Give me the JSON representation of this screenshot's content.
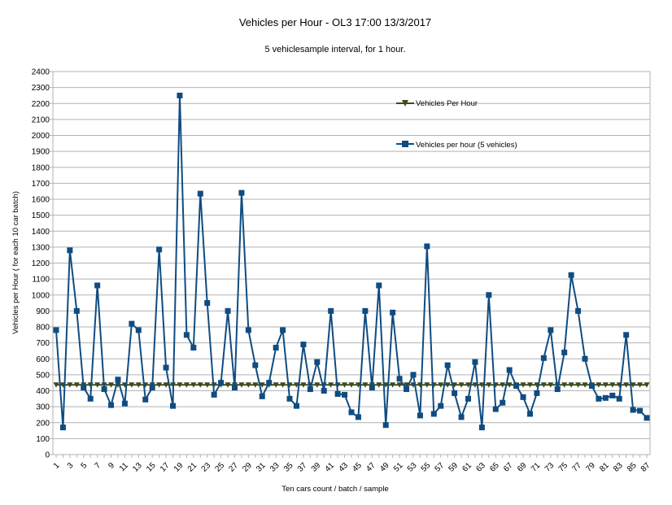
{
  "chart_data": {
    "type": "line",
    "title": "Vehicles per Hour - OL3   17:00 13/3/2017",
    "subtitle": "5 vehiclesample  interval, for 1 hour.",
    "xlabel": "Ten cars count / batch / sample",
    "ylabel": "Vehicles per Hour ( for each 10 car batch)",
    "ylim": [
      0,
      2400
    ],
    "yticks": [
      0,
      100,
      200,
      300,
      400,
      500,
      600,
      700,
      800,
      900,
      1000,
      1100,
      1200,
      1300,
      1400,
      1500,
      1600,
      1700,
      1800,
      1900,
      2000,
      2100,
      2200,
      2300,
      2400
    ],
    "x": [
      1,
      2,
      3,
      4,
      5,
      6,
      7,
      8,
      9,
      10,
      11,
      12,
      13,
      14,
      15,
      16,
      17,
      18,
      19,
      20,
      21,
      22,
      23,
      24,
      25,
      26,
      27,
      28,
      29,
      30,
      31,
      32,
      33,
      34,
      35,
      36,
      37,
      38,
      39,
      40,
      41,
      42,
      43,
      44,
      45,
      46,
      47,
      48,
      49,
      50,
      51,
      52,
      53,
      54,
      55,
      56,
      57,
      58,
      59,
      60,
      61,
      62,
      63,
      64,
      65,
      66,
      67,
      68,
      69,
      70,
      71,
      72,
      73,
      74,
      75,
      76,
      77,
      78,
      79,
      80,
      81,
      82,
      83,
      84,
      85,
      86,
      87
    ],
    "xtick_labels": [
      "1",
      "3",
      "5",
      "7",
      "9",
      "11",
      "13",
      "15",
      "17",
      "19",
      "21",
      "23",
      "25",
      "27",
      "29",
      "31",
      "33",
      "35",
      "37",
      "39",
      "41",
      "43",
      "45",
      "47",
      "49",
      "51",
      "53",
      "55",
      "57",
      "59",
      "61",
      "63",
      "65",
      "67",
      "69",
      "71",
      "73",
      "75",
      "77",
      "79",
      "81",
      "83",
      "85",
      "87"
    ],
    "grid": true,
    "legend_position": "top-right",
    "series": [
      {
        "name": "Vehicles Per Hour",
        "color": "#3c4a1e",
        "marker": "triangle-down",
        "values": [
          437,
          437,
          437,
          437,
          437,
          437,
          437,
          437,
          437,
          437,
          437,
          437,
          437,
          437,
          437,
          437,
          437,
          437,
          437,
          437,
          437,
          437,
          437,
          437,
          437,
          437,
          437,
          437,
          437,
          437,
          437,
          437,
          437,
          437,
          437,
          437,
          437,
          437,
          437,
          437,
          437,
          437,
          437,
          437,
          437,
          437,
          437,
          437,
          437,
          437,
          437,
          437,
          437,
          437,
          437,
          437,
          437,
          437,
          437,
          437,
          437,
          437,
          437,
          437,
          437,
          437,
          437,
          437,
          437,
          437,
          437,
          437,
          437,
          437,
          437,
          437,
          437,
          437,
          437,
          437,
          437,
          437,
          437,
          437,
          437,
          437,
          437
        ]
      },
      {
        "name": "Vehicles per hour (5 vehicles)",
        "color": "#0f4c81",
        "marker": "square",
        "values": [
          780,
          170,
          1280,
          900,
          420,
          350,
          1060,
          410,
          310,
          470,
          320,
          820,
          780,
          345,
          420,
          1285,
          545,
          305,
          2250,
          750,
          670,
          1635,
          950,
          375,
          450,
          900,
          420,
          1640,
          780,
          560,
          365,
          450,
          670,
          780,
          350,
          305,
          690,
          410,
          580,
          400,
          900,
          380,
          375,
          265,
          235,
          900,
          420,
          1060,
          185,
          890,
          475,
          410,
          500,
          245,
          1305,
          255,
          305,
          560,
          385,
          235,
          350,
          580,
          170,
          1000,
          285,
          325,
          530,
          430,
          360,
          255,
          385,
          605,
          780,
          410,
          640,
          1125,
          900,
          600,
          430,
          350,
          355,
          370,
          350,
          750,
          280,
          275,
          230
        ]
      }
    ]
  }
}
